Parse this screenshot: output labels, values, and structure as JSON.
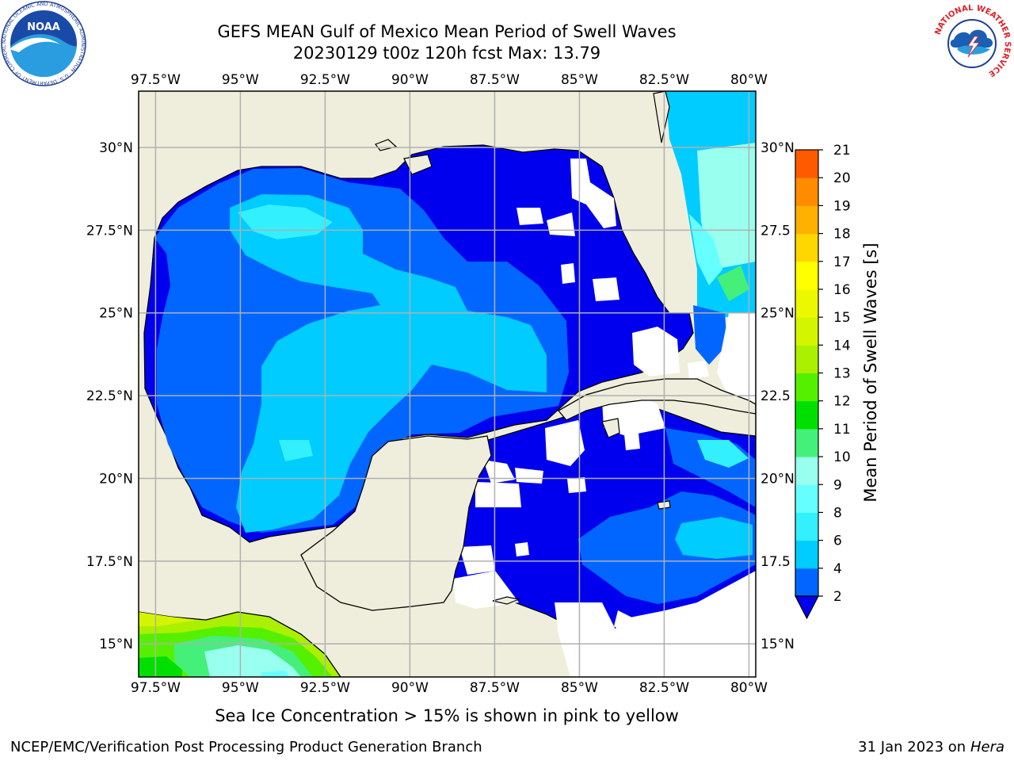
{
  "title": {
    "line1": "GEFS MEAN Gulf of Mexico Mean Period of Swell Waves",
    "line2": "20230129 t00z 120h fcst   Max: 13.79"
  },
  "map": {
    "lon_labels": [
      "97.5°W",
      "95°W",
      "92.5°W",
      "90°W",
      "87.5°W",
      "85°W",
      "82.5°W",
      "80°W"
    ],
    "lat_labels_left": [
      "30°N",
      "27.5°N",
      "25°N",
      "22.5°N",
      "20°N",
      "17.5°N",
      "15°N"
    ],
    "lat_labels_right": [
      "30°N",
      "27.5",
      "25°N",
      "22.5",
      "20°N",
      "17.5",
      "15°N"
    ],
    "lon_range": [
      -98,
      -79.8
    ],
    "lat_range": [
      14,
      31.7
    ],
    "land_color": "#efeedc",
    "grid_color": "#b0b0b0"
  },
  "colorbar": {
    "label": "Mean Period of Swell Waves [s]",
    "ticks": [
      "2",
      "4",
      "6",
      "8",
      "9",
      "10",
      "11",
      "12",
      "13",
      "14",
      "15",
      "16",
      "17",
      "18",
      "19",
      "20",
      "21"
    ],
    "colors": [
      "#0066ff",
      "#00ccff",
      "#33f0ff",
      "#66ffff",
      "#99ffee",
      "#44f07a",
      "#00e000",
      "#55f000",
      "#aaf000",
      "#d4f500",
      "#ecf800",
      "#ffff00",
      "#ffd700",
      "#ffb000",
      "#ff8c00",
      "#ff5a00",
      "#ff2a00",
      "#ff0000"
    ],
    "under_color": "#0000ee"
  },
  "footer": {
    "note": "Sea Ice Concentration > 15% is shown in pink to yellow",
    "credit": "NCEP/EMC/Verification Post Processing Product Generation Branch",
    "date": "31 Jan 2023 on",
    "host": "Hera"
  },
  "logos": {
    "noaa_text": "NOAA",
    "noaa_ring": "NATIONAL OCEANIC AND ATMOSPHERIC ADMINISTRATION · U.S. DEPARTMENT OF COMMERCE",
    "nws_ring": "NATIONAL WEATHER SERVICE"
  }
}
